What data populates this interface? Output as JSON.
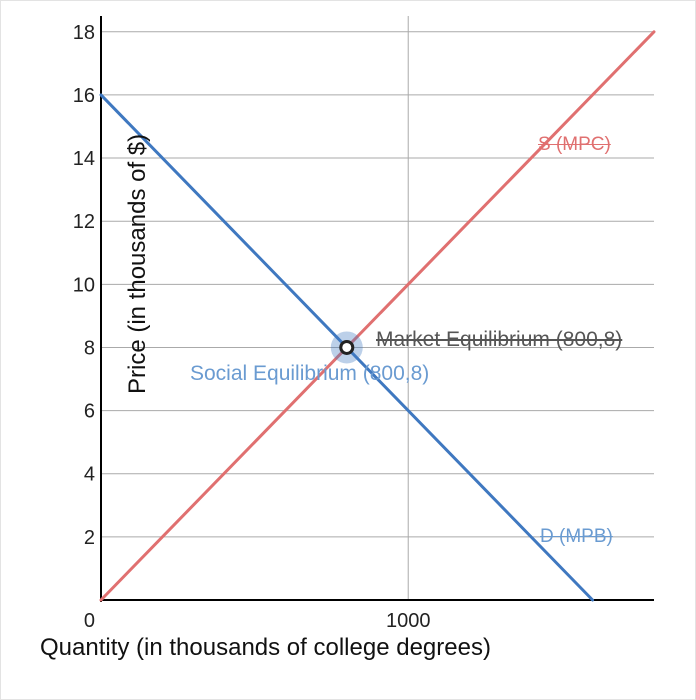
{
  "chart_data": {
    "type": "line",
    "xlabel": "Quantity (in thousands of college degrees)",
    "ylabel": "Price (in thousands of $)",
    "x_ticks": [
      0,
      1000
    ],
    "y_ticks": [
      2,
      4,
      6,
      8,
      10,
      12,
      14,
      16,
      18
    ],
    "xlim": [
      0,
      1800
    ],
    "ylim": [
      0,
      18.5
    ],
    "grid": true,
    "series": [
      {
        "name": "S (MPC)",
        "color": "#e07070",
        "x": [
          0,
          1800
        ],
        "y": [
          0,
          18
        ]
      },
      {
        "name": "D (MPB)",
        "color": "#3f78c0",
        "x": [
          0,
          1600
        ],
        "y": [
          16,
          0
        ]
      }
    ],
    "annotations": [
      {
        "text": "Market Equilibrium (800,8)",
        "x": 800,
        "y": 8,
        "color": "#555555"
      },
      {
        "text": "Social Equilibrium (800,8)",
        "x": 800,
        "y": 8,
        "color": "#6a9bd1"
      }
    ]
  }
}
